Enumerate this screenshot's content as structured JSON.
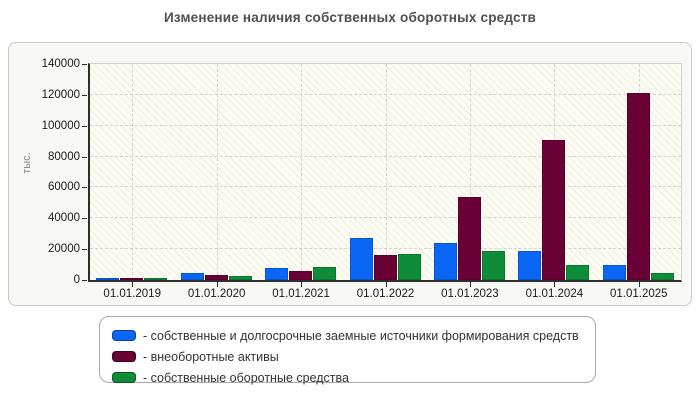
{
  "chart_data": {
    "type": "bar",
    "title": "Изменение наличия собственных оборотных средств",
    "xlabel": "",
    "ylabel": "тыс.",
    "categories": [
      "01.01.2019",
      "01.01.2020",
      "01.01.2021",
      "01.01.2022",
      "01.01.2023",
      "01.01.2024",
      "01.01.2025"
    ],
    "series": [
      {
        "name": "собственные и долгосрочные заемные источники формирования средств",
        "color": "#0a66f5",
        "values": [
          1300,
          4300,
          7900,
          27000,
          24000,
          18500,
          10000
        ]
      },
      {
        "name": "внеоборотные активы",
        "color": "#690136",
        "values": [
          800,
          3100,
          5900,
          16000,
          53500,
          91000,
          121500
        ]
      },
      {
        "name": "собственные оборотные средства",
        "color": "#0e8c38",
        "values": [
          1400,
          2500,
          8300,
          17000,
          19000,
          10000,
          4500
        ]
      }
    ],
    "ylim": [
      0,
      140000
    ],
    "ytick_step": 20000,
    "grid": true,
    "grid_style": "dashed, horizontal every 20000 and vertical at category centers",
    "legend_position": "bottom-box",
    "legend_prefix": "- ",
    "plot_background": "#fcfcf2 with diagonal hatching",
    "title_color": "#4f4f4f"
  }
}
